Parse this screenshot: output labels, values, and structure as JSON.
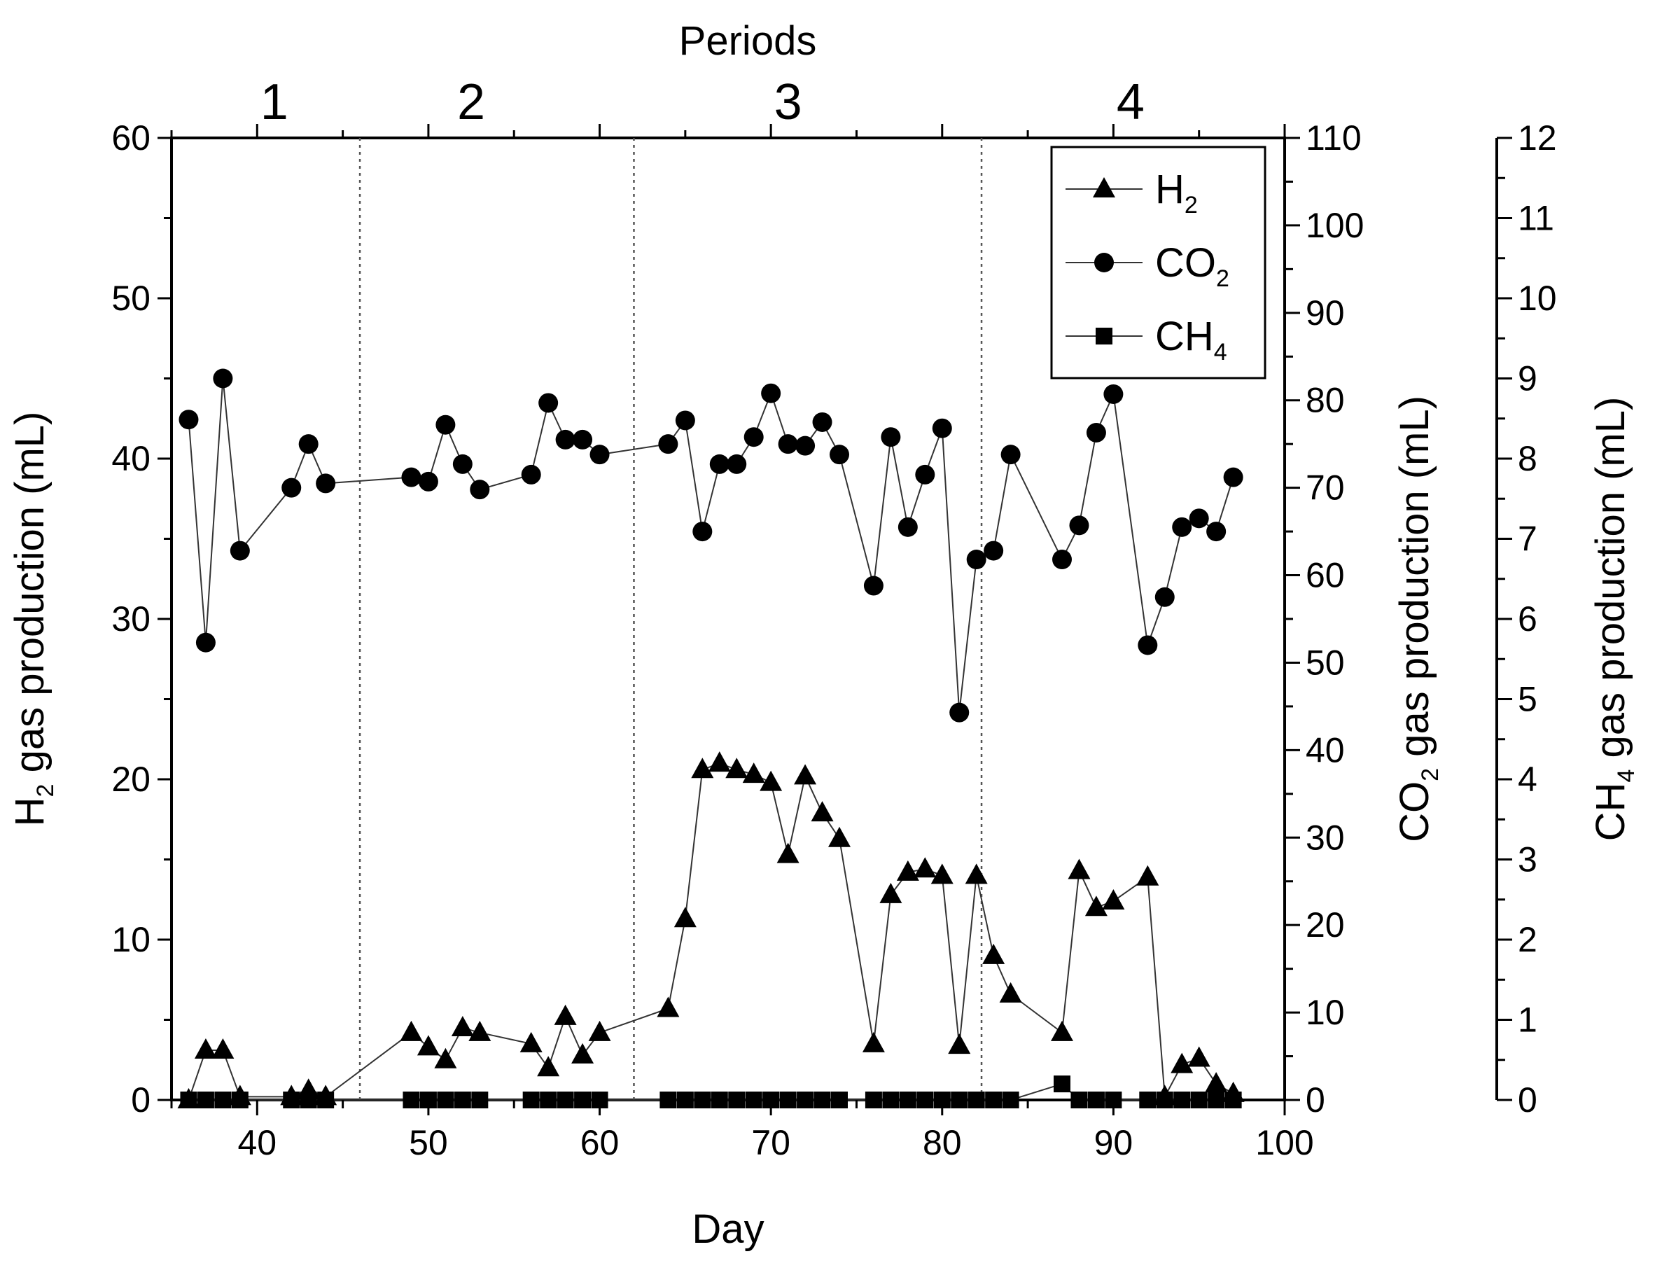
{
  "chart_data": {
    "type": "line",
    "x": {
      "label": "Day",
      "range": [
        35,
        100
      ],
      "ticks": [
        40,
        50,
        60,
        70,
        80,
        90,
        100
      ]
    },
    "top_axis": {
      "label": "Periods",
      "period_labels": [
        {
          "label": "1",
          "at_day": 41
        },
        {
          "label": "2",
          "at_day": 52.5
        },
        {
          "label": "3",
          "at_day": 71
        },
        {
          "label": "4",
          "at_day": 91
        }
      ],
      "boundaries": [
        46,
        62,
        82.3
      ]
    },
    "y_axes": [
      {
        "id": "h2",
        "label_main": "H",
        "label_sub": "2",
        "label_rest": " gas production (mL)",
        "range": [
          0,
          60
        ],
        "ticks": [
          0,
          10,
          20,
          30,
          40,
          50,
          60
        ]
      },
      {
        "id": "co2",
        "label_main": "CO",
        "label_sub": "2",
        "label_rest": " gas production (mL)",
        "range": [
          0,
          110
        ],
        "ticks": [
          0,
          10,
          20,
          30,
          40,
          50,
          60,
          70,
          80,
          90,
          100,
          110
        ]
      },
      {
        "id": "ch4",
        "label_main": "CH",
        "label_sub": "4",
        "label_rest": " gas production (mL)",
        "range": [
          0,
          12
        ],
        "ticks": [
          0,
          1,
          2,
          3,
          4,
          5,
          6,
          7,
          8,
          9,
          10,
          11,
          12
        ]
      }
    ],
    "series": [
      {
        "name": "H2",
        "legend_main": "H",
        "legend_sub": "2",
        "axis": "h2",
        "marker": "triangle",
        "points": [
          [
            36,
            0
          ],
          [
            37,
            3.1
          ],
          [
            38,
            3.1
          ],
          [
            39,
            0.2
          ],
          [
            42,
            0.2
          ],
          [
            43,
            0.6
          ],
          [
            44,
            0.2
          ],
          [
            49,
            4.2
          ],
          [
            50,
            3.3
          ],
          [
            51,
            2.5
          ],
          [
            52,
            4.5
          ],
          [
            53,
            4.2
          ],
          [
            56,
            3.5
          ],
          [
            57,
            2.0
          ],
          [
            58,
            5.2
          ],
          [
            59,
            2.8
          ],
          [
            60,
            4.2
          ],
          [
            64,
            5.7
          ],
          [
            65,
            11.3
          ],
          [
            66,
            20.6
          ],
          [
            67,
            21.0
          ],
          [
            68,
            20.6
          ],
          [
            69,
            20.3
          ],
          [
            70,
            19.8
          ],
          [
            71,
            15.3
          ],
          [
            72,
            20.2
          ],
          [
            73,
            17.9
          ],
          [
            74,
            16.3
          ],
          [
            76,
            3.5
          ],
          [
            77,
            12.8
          ],
          [
            78,
            14.2
          ],
          [
            79,
            14.4
          ],
          [
            80,
            14.0
          ],
          [
            81,
            3.4
          ],
          [
            82,
            14.0
          ],
          [
            83,
            9.0
          ],
          [
            84,
            6.6
          ],
          [
            87,
            4.2
          ],
          [
            88,
            14.3
          ],
          [
            89,
            12.0
          ],
          [
            90,
            12.4
          ],
          [
            92,
            13.9
          ],
          [
            93,
            0.2
          ],
          [
            94,
            2.2
          ],
          [
            95,
            2.6
          ],
          [
            96,
            1.0
          ],
          [
            97,
            0.4
          ]
        ]
      },
      {
        "name": "CO2",
        "legend_main": "CO",
        "legend_sub": "2",
        "axis": "co2",
        "marker": "circle",
        "points": [
          [
            36,
            77.8
          ],
          [
            37,
            52.3
          ],
          [
            38,
            82.5
          ],
          [
            39,
            62.8
          ],
          [
            42,
            70.0
          ],
          [
            43,
            75.0
          ],
          [
            44,
            70.5
          ],
          [
            49,
            71.2
          ],
          [
            50,
            70.7
          ],
          [
            51,
            77.2
          ],
          [
            52,
            72.7
          ],
          [
            53,
            69.8
          ],
          [
            56,
            71.5
          ],
          [
            57,
            79.7
          ],
          [
            58,
            75.5
          ],
          [
            59,
            75.5
          ],
          [
            60,
            73.8
          ],
          [
            64,
            75.0
          ],
          [
            65,
            77.7
          ],
          [
            66,
            65.0
          ],
          [
            67,
            72.7
          ],
          [
            68,
            72.7
          ],
          [
            69,
            75.8
          ],
          [
            70,
            80.8
          ],
          [
            71,
            75.0
          ],
          [
            72,
            74.8
          ],
          [
            73,
            77.5
          ],
          [
            74,
            73.8
          ],
          [
            76,
            58.8
          ],
          [
            77,
            75.8
          ],
          [
            78,
            65.5
          ],
          [
            79,
            71.5
          ],
          [
            80,
            76.8
          ],
          [
            81,
            44.3
          ],
          [
            82,
            61.8
          ],
          [
            83,
            62.8
          ],
          [
            84,
            73.8
          ],
          [
            87,
            61.8
          ],
          [
            88,
            65.7
          ],
          [
            89,
            76.3
          ],
          [
            90,
            80.7
          ],
          [
            92,
            52.0
          ],
          [
            93,
            57.5
          ],
          [
            94,
            65.5
          ],
          [
            95,
            66.5
          ],
          [
            96,
            65.0
          ],
          [
            97,
            71.2
          ]
        ]
      },
      {
        "name": "CH4",
        "legend_main": "CH",
        "legend_sub": "4",
        "axis": "ch4",
        "marker": "square",
        "points": [
          [
            36,
            0
          ],
          [
            37,
            0
          ],
          [
            38,
            0
          ],
          [
            39,
            0
          ],
          [
            42,
            0
          ],
          [
            43,
            0
          ],
          [
            44,
            0
          ],
          [
            49,
            0
          ],
          [
            50,
            0
          ],
          [
            51,
            0
          ],
          [
            52,
            0
          ],
          [
            53,
            0
          ],
          [
            56,
            0
          ],
          [
            57,
            0
          ],
          [
            58,
            0
          ],
          [
            59,
            0
          ],
          [
            60,
            0
          ],
          [
            64,
            0
          ],
          [
            65,
            0
          ],
          [
            66,
            0
          ],
          [
            67,
            0
          ],
          [
            68,
            0
          ],
          [
            69,
            0
          ],
          [
            70,
            0
          ],
          [
            71,
            0
          ],
          [
            72,
            0
          ],
          [
            73,
            0
          ],
          [
            74,
            0
          ],
          [
            76,
            0
          ],
          [
            77,
            0
          ],
          [
            78,
            0
          ],
          [
            79,
            0
          ],
          [
            80,
            0
          ],
          [
            81,
            0
          ],
          [
            82,
            0
          ],
          [
            83,
            0
          ],
          [
            84,
            0
          ],
          [
            87,
            0.2
          ],
          [
            88,
            0
          ],
          [
            89,
            0
          ],
          [
            90,
            0
          ],
          [
            92,
            0
          ],
          [
            93,
            0
          ],
          [
            94,
            0
          ],
          [
            95,
            0
          ],
          [
            96,
            0
          ],
          [
            97,
            0
          ]
        ]
      }
    ],
    "legend_position": "top-right"
  }
}
